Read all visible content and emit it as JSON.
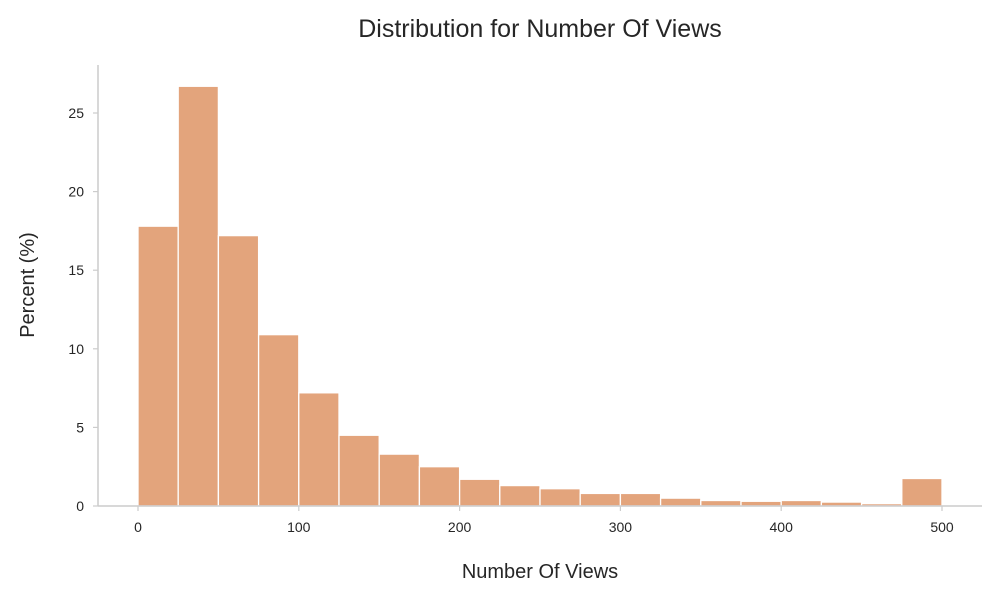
{
  "chart_data": {
    "type": "bar",
    "title": "Distribution for Number Of Views",
    "xlabel": "Number Of Views",
    "ylabel": "Percent (%)",
    "bin_width": 25,
    "bins_start": [
      0,
      25,
      50,
      75,
      100,
      125,
      150,
      175,
      200,
      225,
      250,
      275,
      300,
      325,
      350,
      375,
      400,
      425,
      450,
      475
    ],
    "values": [
      17.8,
      26.7,
      17.2,
      10.9,
      7.2,
      4.5,
      3.3,
      2.5,
      1.7,
      1.3,
      1.1,
      0.8,
      0.8,
      0.5,
      0.35,
      0.3,
      0.35,
      0.25,
      0.15,
      1.75
    ],
    "xlim": [
      -25,
      525
    ],
    "ylim": [
      0,
      28
    ],
    "x_ticks": [
      0,
      100,
      200,
      300,
      400,
      500
    ],
    "y_ticks": [
      0,
      5,
      10,
      15,
      20,
      25
    ],
    "grid": false,
    "color": "#e3a47c"
  }
}
